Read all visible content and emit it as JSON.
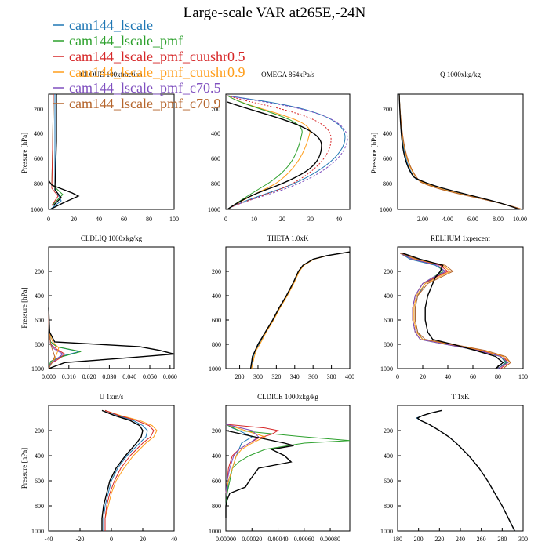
{
  "figure": {
    "title": "Large-scale VAR at265E,-24N"
  },
  "legend": [
    {
      "name": "cam144_lscale",
      "color": "#1f77b4"
    },
    {
      "name": "cam144_lscale_pmf",
      "color": "#2ca02c"
    },
    {
      "name": "cam144_lscale_pmf_cuushr0.5",
      "color": "#d62728"
    },
    {
      "name": "cam144_lscale_pmf_cuushr0.9",
      "color": "#ff9e1b"
    },
    {
      "name": "cam144_lscale_pmf_c70.5",
      "color": "#7f4fbf"
    },
    {
      "name": "cam144_lscale_pmf_c70.9",
      "color": "#b5652c"
    }
  ],
  "series_extra": {
    "color": "#000000"
  },
  "chart_data": [
    {
      "type": "line",
      "title": "CLDLIQ  1000xkg/kg",
      "ylabel": "Pressure [hPa]",
      "xlim": [
        0.0,
        0.062
      ],
      "ylim": [
        1000,
        0
      ],
      "xticks": [
        0.0,
        0.01,
        0.02,
        0.03,
        0.04,
        0.05,
        0.06
      ],
      "xticklabels": [
        "0.000",
        "0.010",
        "0.020",
        "0.030",
        "0.040",
        "0.050",
        "0.060"
      ],
      "yticks": [
        200,
        400,
        600,
        800,
        1000
      ],
      "series": [
        {
          "color": "#1f77b4",
          "y": [
            500,
            700,
            780,
            820,
            860,
            900,
            940,
            1000
          ],
          "x": [
            0,
            0.0002,
            0.001,
            0.004,
            0.015,
            0.006,
            0.001,
            0
          ]
        },
        {
          "color": "#2ca02c",
          "y": [
            500,
            700,
            780,
            820,
            860,
            900,
            940,
            1000
          ],
          "x": [
            0,
            0.0002,
            0.001,
            0.004,
            0.016,
            0.007,
            0.001,
            0
          ]
        },
        {
          "color": "#d62728",
          "y": [
            500,
            700,
            800,
            840,
            880,
            920,
            960,
            1000
          ],
          "x": [
            0,
            0.0002,
            0.001,
            0.004,
            0.008,
            0.005,
            0.001,
            0
          ]
        },
        {
          "color": "#ff9e1b",
          "y": [
            500,
            700,
            780,
            830,
            880,
            920,
            960,
            1000
          ],
          "x": [
            0,
            0.0002,
            0.002,
            0.005,
            0.004,
            0.003,
            0.001,
            0
          ]
        },
        {
          "color": "#7f4fbf",
          "y": [
            500,
            700,
            800,
            840,
            880,
            920,
            960,
            1000
          ],
          "x": [
            0,
            0.0002,
            0.001,
            0.003,
            0.007,
            0.004,
            0.001,
            0
          ]
        },
        {
          "color": "#b5652c",
          "y": [
            500,
            700,
            800,
            850,
            900,
            940,
            970,
            1000
          ],
          "x": [
            0,
            0.0002,
            0.001,
            0.002,
            0.003,
            0.002,
            0.001,
            0
          ]
        },
        {
          "color": "#000000",
          "y": [
            500,
            700,
            780,
            820,
            850,
            880,
            910,
            950,
            1000
          ],
          "x": [
            0,
            0.0005,
            0.003,
            0.045,
            0.055,
            0.062,
            0.04,
            0.008,
            0
          ]
        }
      ]
    },
    {
      "type": "line",
      "title": "THETA  1.0xK",
      "ylabel": "",
      "xlim": [
        265,
        400
      ],
      "ylim": [
        1000,
        0
      ],
      "xticks": [
        280,
        300,
        320,
        340,
        360,
        380,
        400
      ],
      "xticklabels": [
        "280",
        "300",
        "320",
        "340",
        "360",
        "380",
        "400"
      ],
      "yticks": [
        200,
        400,
        600,
        800,
        1000
      ],
      "series": [
        {
          "color": "#1f77b4",
          "y": [
            1000,
            900,
            850,
            800,
            700,
            600,
            500,
            400,
            300,
            200,
            150,
            100,
            70,
            40
          ],
          "x": [
            292,
            295,
            297,
            301,
            308,
            316,
            323,
            331,
            338,
            344,
            349,
            360,
            375,
            399
          ]
        },
        {
          "color": "#ff9e1b",
          "y": [
            1000,
            900,
            850,
            800,
            700,
            600,
            500,
            400,
            300,
            200,
            150,
            100,
            70,
            40
          ],
          "x": [
            293,
            296,
            298,
            302,
            309,
            317,
            324,
            332,
            339,
            345,
            350,
            361,
            376,
            399
          ]
        },
        {
          "color": "#000000",
          "y": [
            1000,
            900,
            850,
            800,
            700,
            600,
            500,
            400,
            300,
            200,
            150,
            100,
            70,
            40
          ],
          "x": [
            292,
            294,
            297,
            300,
            308,
            316,
            323,
            331,
            338,
            344,
            349,
            360,
            375,
            400
          ]
        }
      ]
    },
    {
      "type": "line",
      "title": "RELHUM  1xpercent",
      "ylabel": "",
      "xlim": [
        0,
        100
      ],
      "ylim": [
        1000,
        0
      ],
      "xticks": [
        0,
        20,
        40,
        60,
        80,
        100
      ],
      "xticklabels": [
        "0",
        "20",
        "40",
        "60",
        "80",
        "100"
      ],
      "yticks": [
        200,
        400,
        600,
        800,
        1000
      ],
      "series": [
        {
          "color": "#1f77b4",
          "y": [
            50,
            100,
            150,
            200,
            250,
            300,
            400,
            500,
            600,
            700,
            760,
            800,
            850,
            900,
            950,
            1000
          ],
          "x": [
            2,
            10,
            30,
            38,
            30,
            22,
            16,
            14,
            14,
            16,
            20,
            40,
            65,
            82,
            86,
            80
          ]
        },
        {
          "color": "#2ca02c",
          "y": [
            50,
            100,
            150,
            200,
            250,
            300,
            400,
            500,
            600,
            700,
            760,
            800,
            850,
            900,
            950,
            1000
          ],
          "x": [
            2,
            12,
            32,
            36,
            28,
            20,
            14,
            12,
            12,
            14,
            18,
            38,
            64,
            82,
            87,
            80
          ]
        },
        {
          "color": "#d62728",
          "y": [
            50,
            100,
            150,
            200,
            250,
            300,
            400,
            500,
            600,
            700,
            760,
            800,
            850,
            900,
            950,
            1000
          ],
          "x": [
            2,
            12,
            34,
            40,
            30,
            20,
            14,
            12,
            12,
            14,
            18,
            40,
            66,
            84,
            88,
            82
          ]
        },
        {
          "color": "#ff9e1b",
          "y": [
            50,
            100,
            150,
            200,
            250,
            300,
            400,
            500,
            600,
            700,
            760,
            800,
            850,
            900,
            950,
            1000
          ],
          "x": [
            2,
            14,
            36,
            42,
            32,
            22,
            15,
            13,
            13,
            15,
            20,
            42,
            68,
            84,
            90,
            84
          ]
        },
        {
          "color": "#7f4fbf",
          "y": [
            50,
            100,
            150,
            200,
            250,
            300,
            400,
            500,
            600,
            700,
            760,
            800,
            850,
            900,
            950,
            1000
          ],
          "x": [
            2,
            12,
            32,
            38,
            28,
            20,
            14,
            12,
            12,
            14,
            18,
            38,
            64,
            82,
            88,
            80
          ]
        },
        {
          "color": "#b5652c",
          "y": [
            50,
            100,
            150,
            200,
            250,
            300,
            400,
            500,
            600,
            700,
            760,
            800,
            850,
            900,
            950,
            1000
          ],
          "x": [
            2,
            16,
            38,
            44,
            34,
            24,
            16,
            14,
            14,
            16,
            22,
            44,
            70,
            86,
            90,
            84
          ]
        },
        {
          "color": "#000000",
          "y": [
            50,
            100,
            150,
            200,
            250,
            300,
            400,
            500,
            600,
            700,
            760,
            800,
            850,
            900,
            950,
            1000
          ],
          "x": [
            4,
            18,
            36,
            34,
            30,
            28,
            24,
            22,
            22,
            24,
            28,
            44,
            62,
            78,
            84,
            78
          ]
        }
      ]
    },
    {
      "type": "line",
      "title": "U  1xm/s",
      "ylabel": "Pressure [hPa]",
      "xlim": [
        -40,
        40
      ],
      "ylim": [
        1000,
        0
      ],
      "xticks": [
        -40,
        -20,
        0,
        20,
        40
      ],
      "xticklabels": [
        "-40",
        "-20",
        "0",
        "20",
        "40"
      ],
      "yticks": [
        200,
        400,
        600,
        800,
        1000
      ],
      "series": [
        {
          "color": "#1f77b4",
          "y": [
            40,
            80,
            120,
            160,
            200,
            250,
            300,
            400,
            500,
            600,
            700,
            800,
            900,
            1000
          ],
          "x": [
            -4,
            4,
            14,
            20,
            23,
            22,
            18,
            10,
            4,
            0,
            -2,
            -4,
            -5,
            -5
          ]
        },
        {
          "color": "#ff9e1b",
          "y": [
            40,
            80,
            120,
            160,
            200,
            250,
            300,
            400,
            500,
            600,
            700,
            800,
            900,
            1000
          ],
          "x": [
            -4,
            6,
            18,
            26,
            29,
            27,
            22,
            14,
            8,
            3,
            0,
            -2,
            -4,
            -4
          ]
        },
        {
          "color": "#d62728",
          "y": [
            40,
            80,
            120,
            160,
            200,
            250,
            300,
            400,
            500,
            600,
            700,
            800,
            900,
            1000
          ],
          "x": [
            -4,
            5,
            16,
            24,
            27,
            25,
            20,
            12,
            6,
            2,
            -1,
            -3,
            -4,
            -4
          ]
        },
        {
          "color": "#000000",
          "y": [
            40,
            80,
            120,
            160,
            200,
            250,
            300,
            400,
            500,
            600,
            700,
            800,
            900,
            1000
          ],
          "x": [
            -6,
            2,
            12,
            18,
            20,
            19,
            16,
            9,
            3,
            -1,
            -3,
            -5,
            -6,
            -6
          ]
        }
      ]
    },
    {
      "type": "line",
      "title": "CLDICE  1000xkg/kg",
      "ylabel": "",
      "xlim": [
        0,
        0.00095
      ],
      "ylim": [
        1000,
        0
      ],
      "xticks": [
        0,
        0.0002,
        0.0004,
        0.0006,
        0.0008
      ],
      "xticklabels": [
        "0.00000",
        "0.00020",
        "0.00040",
        "0.00060",
        "0.00080"
      ],
      "yticks": [
        200,
        400,
        600,
        800,
        1000
      ],
      "series": [
        {
          "color": "#1f77b4",
          "y": [
            150,
            180,
            200,
            250,
            300,
            400,
            500,
            600,
            700,
            800
          ],
          "x": [
            0,
            5e-05,
            0.0001,
            0.0002,
            0.00012,
            8e-05,
            5e-05,
            2e-05,
            1e-05,
            0
          ]
        },
        {
          "color": "#2ca02c",
          "y": [
            150,
            200,
            250,
            280,
            300,
            350,
            400,
            450,
            500,
            600,
            700,
            800
          ],
          "x": [
            0,
            0.0001,
            0.0006,
            0.00095,
            0.0006,
            0.0003,
            0.00018,
            0.0001,
            5e-05,
            3e-05,
            1e-05,
            0
          ]
        },
        {
          "color": "#d62728",
          "y": [
            150,
            180,
            200,
            230,
            260,
            300,
            350,
            400,
            500,
            600,
            700
          ],
          "x": [
            0,
            0.0003,
            0.0004,
            0.00035,
            0.00025,
            0.00018,
            0.0001,
            5e-05,
            2e-05,
            1e-05,
            0
          ]
        },
        {
          "color": "#ff9e1b",
          "y": [
            150,
            200,
            250,
            300,
            350,
            400,
            500,
            600,
            700
          ],
          "x": [
            0,
            0.00015,
            0.0003,
            0.0002,
            0.00012,
            8e-05,
            5e-05,
            2e-05,
            0
          ]
        },
        {
          "color": "#7f4fbf",
          "y": [
            150,
            200,
            250,
            300,
            350,
            400,
            500,
            600,
            700
          ],
          "x": [
            0,
            0.0002,
            0.00025,
            0.00018,
            0.0001,
            6e-05,
            3e-05,
            1e-05,
            0
          ]
        },
        {
          "color": "#000000",
          "y": [
            200,
            250,
            300,
            320,
            350,
            400,
            450,
            500,
            600,
            650,
            700,
            750,
            800,
            900
          ],
          "x": [
            0,
            0.00022,
            0.00045,
            0.00052,
            0.00035,
            0.00045,
            0.0005,
            0.00025,
            0.00018,
            0.00015,
            3e-05,
            1e-05,
            0,
            0
          ]
        }
      ]
    },
    {
      "type": "line",
      "title": "T  1xK",
      "ylabel": "",
      "xlim": [
        180,
        300
      ],
      "ylim": [
        1000,
        0
      ],
      "xticks": [
        180,
        200,
        220,
        240,
        260,
        280,
        300
      ],
      "xticklabels": [
        "180",
        "200",
        "220",
        "240",
        "260",
        "280",
        "300"
      ],
      "yticks": [
        200,
        400,
        600,
        800,
        1000
      ],
      "series": [
        {
          "color": "#1f77b4",
          "y": [
            40,
            60,
            80,
            100,
            120,
            150,
            200,
            250,
            300,
            400,
            500,
            600,
            700,
            800,
            900,
            1000
          ],
          "x": [
            222,
            212,
            204,
            198,
            202,
            210,
            220,
            229,
            236,
            248,
            258,
            266,
            273,
            280,
            286,
            292
          ]
        },
        {
          "color": "#000000",
          "y": [
            40,
            60,
            80,
            100,
            120,
            150,
            200,
            250,
            300,
            400,
            500,
            600,
            700,
            800,
            900,
            1000
          ],
          "x": [
            222,
            212,
            204,
            199,
            202,
            210,
            220,
            229,
            236,
            248,
            258,
            266,
            273,
            280,
            286,
            292
          ]
        }
      ]
    }
  ]
}
